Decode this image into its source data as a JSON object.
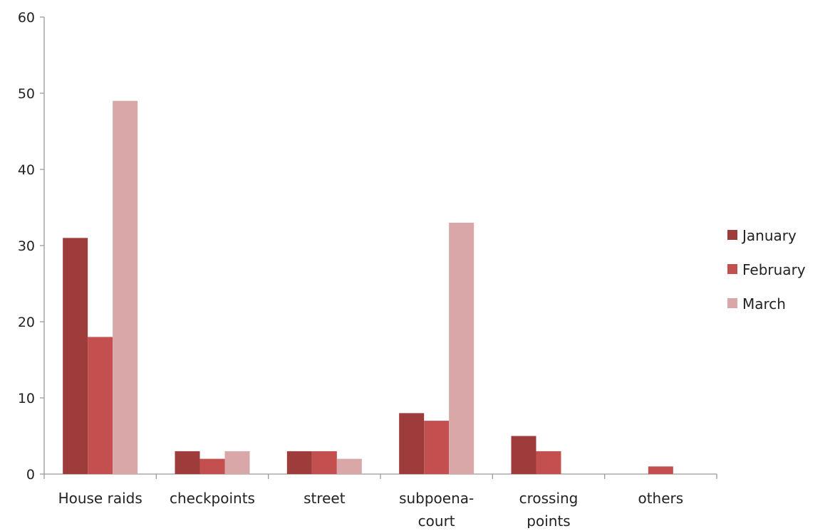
{
  "chart_data": {
    "type": "bar",
    "title": "",
    "xlabel": "",
    "ylabel": "",
    "categories": [
      [
        "House raids"
      ],
      [
        "checkpoints"
      ],
      [
        "street"
      ],
      [
        "subpoena-",
        "court"
      ],
      [
        "crossing",
        "points"
      ],
      [
        "others"
      ]
    ],
    "series": [
      {
        "name": "January",
        "color": "#9e3c3c",
        "values": [
          31,
          3,
          3,
          8,
          5,
          0
        ]
      },
      {
        "name": "February",
        "color": "#c44f4f",
        "values": [
          18,
          2,
          3,
          7,
          3,
          1
        ]
      },
      {
        "name": "March",
        "color": "#d9a7a7",
        "values": [
          49,
          3,
          2,
          33,
          0,
          0
        ]
      }
    ],
    "ylim": [
      0,
      60
    ],
    "yticks": [
      0,
      10,
      20,
      30,
      40,
      50,
      60
    ],
    "grid": false,
    "legend_position": "right"
  }
}
